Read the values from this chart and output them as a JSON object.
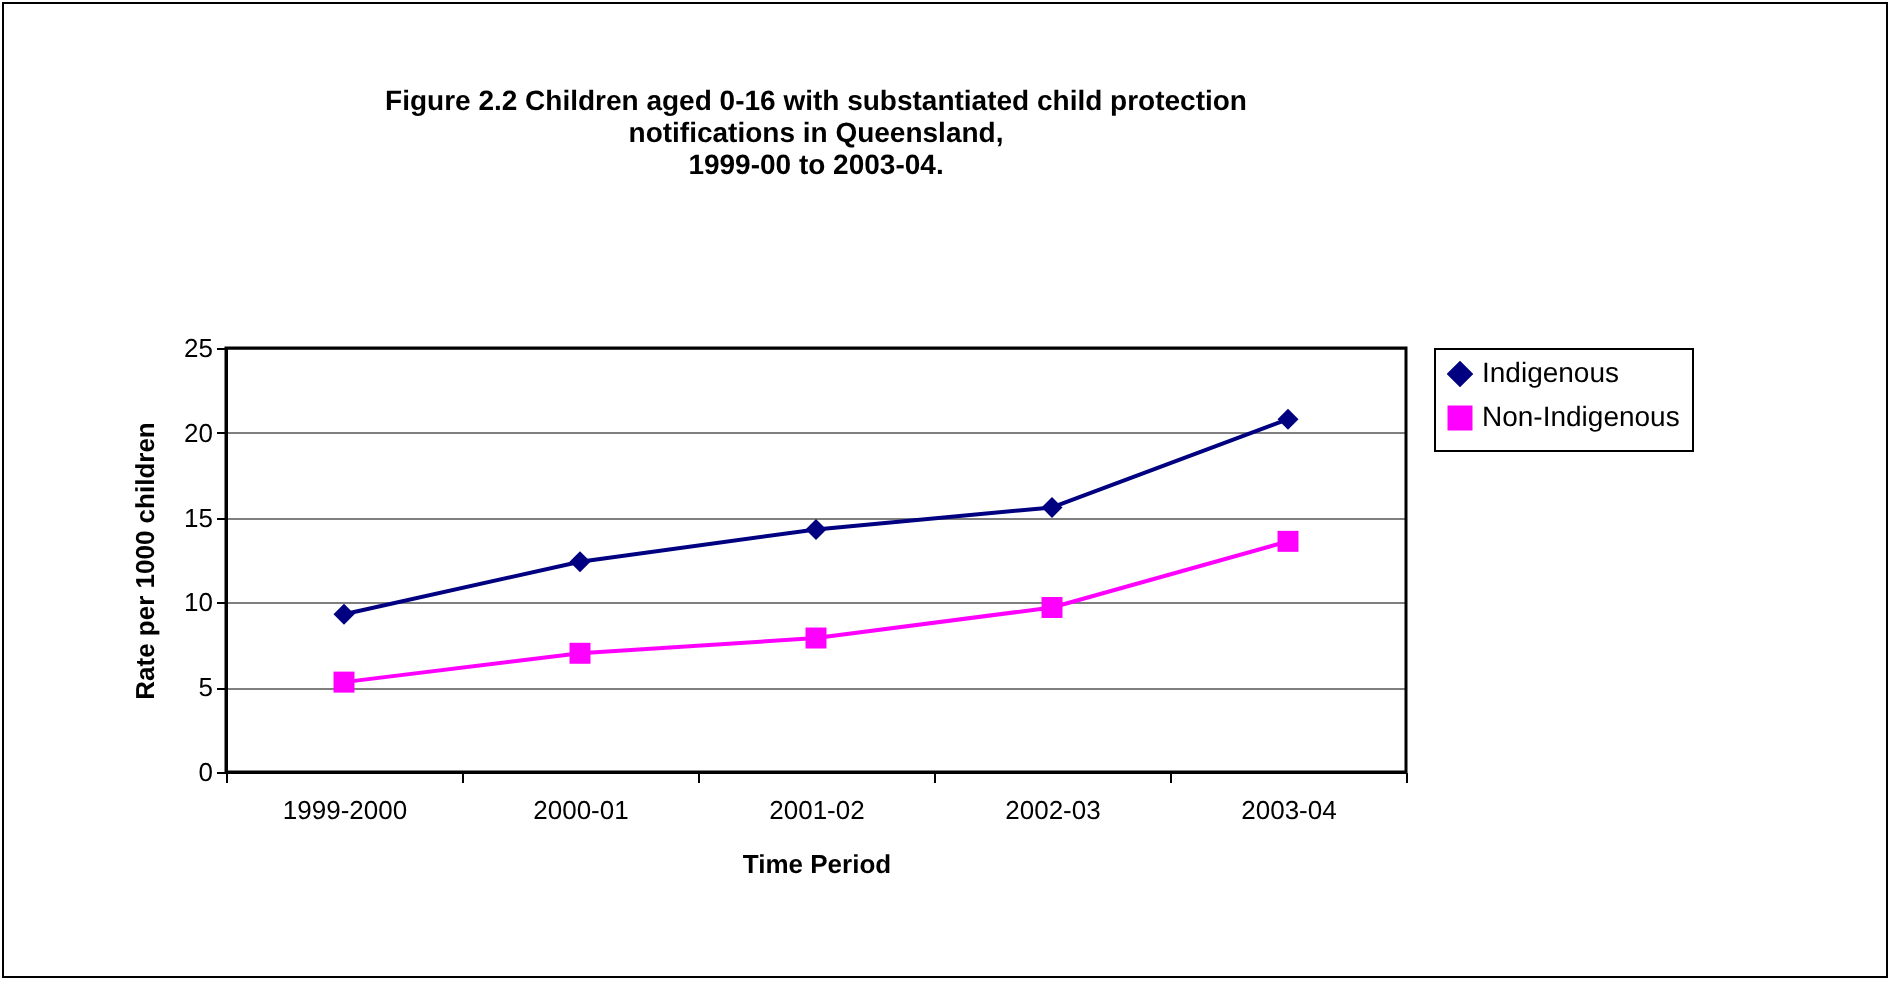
{
  "chart_data": {
    "type": "line",
    "title": "Figure 2.2 Children aged 0-16 with substantiated child protection\nnotifications in Queensland,\n1999-00 to 2003-04.",
    "xlabel": "Time Period",
    "ylabel": "Rate per 1000 children",
    "categories": [
      "1999-2000",
      "2000-01",
      "2001-02",
      "2002-03",
      "2003-04"
    ],
    "series": [
      {
        "name": "Indigenous",
        "color": "#000080",
        "marker": "diamond",
        "values": [
          9.3,
          12.4,
          14.3,
          15.6,
          20.8
        ]
      },
      {
        "name": "Non-Indigenous",
        "color": "#ff00ff",
        "marker": "square",
        "values": [
          5.3,
          7.0,
          7.9,
          9.7,
          13.6
        ]
      }
    ],
    "ylim": [
      0,
      25
    ],
    "yticks": [
      0,
      5,
      10,
      15,
      20,
      25
    ],
    "grid": "y",
    "legend": "right",
    "line_style": "solid"
  }
}
